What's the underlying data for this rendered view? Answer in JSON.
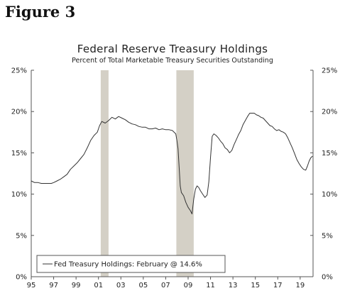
{
  "figure_label": "Figure 3",
  "chart_data": {
    "type": "line",
    "title": "Federal Reserve Treasury Holdings",
    "subtitle": "Percent of Total Marketable Treasury Securities Outstanding",
    "xlabel": "",
    "ylabel": "",
    "xlim": [
      1995.0,
      2020.15
    ],
    "ylim": [
      0,
      25
    ],
    "x_ticks": [
      1995,
      1997,
      1999,
      2001,
      2003,
      2005,
      2007,
      2009,
      2011,
      2013,
      2015,
      2017,
      2019
    ],
    "x_tick_labels": [
      "95",
      "97",
      "99",
      "01",
      "03",
      "05",
      "07",
      "09",
      "11",
      "13",
      "15",
      "17",
      "19"
    ],
    "y_ticks": [
      0,
      5,
      10,
      15,
      20,
      25
    ],
    "y_tick_labels": [
      "0%",
      "5%",
      "10%",
      "15%",
      "20%",
      "25%"
    ],
    "y_axis_sides": "left-and-right",
    "grid": false,
    "shaded_periods": [
      [
        2001.2,
        2001.9
      ],
      [
        2007.95,
        2009.5
      ]
    ],
    "legend": {
      "position": "bottom-left",
      "entries": [
        "Fed Treasury Holdings: February @ 14.6%"
      ]
    },
    "colors": {
      "line": "#333333",
      "recession": "#d4d0c6"
    },
    "series": [
      {
        "name": "Fed Treasury Holdings: February @ 14.6%",
        "points": [
          [
            1995.0,
            11.6
          ],
          [
            1995.3,
            11.4
          ],
          [
            1995.6,
            11.4
          ],
          [
            1995.9,
            11.3
          ],
          [
            1996.2,
            11.3
          ],
          [
            1996.5,
            11.3
          ],
          [
            1996.8,
            11.3
          ],
          [
            1997.0,
            11.4
          ],
          [
            1997.3,
            11.6
          ],
          [
            1997.6,
            11.8
          ],
          [
            1997.9,
            12.1
          ],
          [
            1998.2,
            12.4
          ],
          [
            1998.5,
            13.0
          ],
          [
            1998.8,
            13.4
          ],
          [
            1999.1,
            13.8
          ],
          [
            1999.4,
            14.3
          ],
          [
            1999.7,
            14.8
          ],
          [
            2000.0,
            15.6
          ],
          [
            2000.3,
            16.5
          ],
          [
            2000.6,
            17.1
          ],
          [
            2000.9,
            17.5
          ],
          [
            2001.1,
            18.3
          ],
          [
            2001.3,
            18.8
          ],
          [
            2001.6,
            18.6
          ],
          [
            2001.9,
            18.9
          ],
          [
            2002.2,
            19.3
          ],
          [
            2002.5,
            19.1
          ],
          [
            2002.8,
            19.4
          ],
          [
            2003.1,
            19.2
          ],
          [
            2003.4,
            19.0
          ],
          [
            2003.7,
            18.7
          ],
          [
            2004.0,
            18.5
          ],
          [
            2004.3,
            18.4
          ],
          [
            2004.6,
            18.2
          ],
          [
            2004.9,
            18.1
          ],
          [
            2005.2,
            18.1
          ],
          [
            2005.5,
            17.9
          ],
          [
            2005.8,
            17.9
          ],
          [
            2006.1,
            18.0
          ],
          [
            2006.4,
            17.8
          ],
          [
            2006.7,
            17.9
          ],
          [
            2007.0,
            17.8
          ],
          [
            2007.3,
            17.8
          ],
          [
            2007.6,
            17.7
          ],
          [
            2007.9,
            17.3
          ],
          [
            2008.0,
            16.5
          ],
          [
            2008.1,
            15.5
          ],
          [
            2008.2,
            13.2
          ],
          [
            2008.3,
            11.0
          ],
          [
            2008.4,
            10.2
          ],
          [
            2008.6,
            9.8
          ],
          [
            2008.8,
            9.0
          ],
          [
            2009.0,
            8.4
          ],
          [
            2009.2,
            8.0
          ],
          [
            2009.35,
            7.6
          ],
          [
            2009.5,
            9.4
          ],
          [
            2009.65,
            10.6
          ],
          [
            2009.8,
            11.0
          ],
          [
            2009.95,
            10.8
          ],
          [
            2010.1,
            10.4
          ],
          [
            2010.3,
            10.0
          ],
          [
            2010.5,
            9.6
          ],
          [
            2010.7,
            9.9
          ],
          [
            2010.85,
            11.5
          ],
          [
            2011.0,
            14.5
          ],
          [
            2011.15,
            17.0
          ],
          [
            2011.3,
            17.3
          ],
          [
            2011.5,
            17.1
          ],
          [
            2011.7,
            16.8
          ],
          [
            2011.9,
            16.4
          ],
          [
            2012.1,
            16.1
          ],
          [
            2012.3,
            15.6
          ],
          [
            2012.5,
            15.4
          ],
          [
            2012.7,
            15.0
          ],
          [
            2012.9,
            15.3
          ],
          [
            2013.1,
            16.0
          ],
          [
            2013.3,
            16.6
          ],
          [
            2013.5,
            17.2
          ],
          [
            2013.7,
            17.7
          ],
          [
            2013.9,
            18.4
          ],
          [
            2014.1,
            18.9
          ],
          [
            2014.3,
            19.4
          ],
          [
            2014.5,
            19.8
          ],
          [
            2014.7,
            19.8
          ],
          [
            2014.9,
            19.8
          ],
          [
            2015.1,
            19.6
          ],
          [
            2015.3,
            19.5
          ],
          [
            2015.5,
            19.3
          ],
          [
            2015.7,
            19.2
          ],
          [
            2015.9,
            18.9
          ],
          [
            2016.1,
            18.6
          ],
          [
            2016.3,
            18.3
          ],
          [
            2016.5,
            18.2
          ],
          [
            2016.7,
            17.9
          ],
          [
            2016.9,
            17.7
          ],
          [
            2017.1,
            17.8
          ],
          [
            2017.3,
            17.6
          ],
          [
            2017.5,
            17.5
          ],
          [
            2017.7,
            17.3
          ],
          [
            2017.9,
            16.8
          ],
          [
            2018.1,
            16.2
          ],
          [
            2018.3,
            15.6
          ],
          [
            2018.5,
            14.9
          ],
          [
            2018.7,
            14.2
          ],
          [
            2018.9,
            13.7
          ],
          [
            2019.1,
            13.3
          ],
          [
            2019.3,
            13.0
          ],
          [
            2019.5,
            12.9
          ],
          [
            2019.65,
            13.4
          ],
          [
            2019.8,
            14.0
          ],
          [
            2019.95,
            14.4
          ],
          [
            2020.1,
            14.6
          ]
        ]
      }
    ]
  }
}
